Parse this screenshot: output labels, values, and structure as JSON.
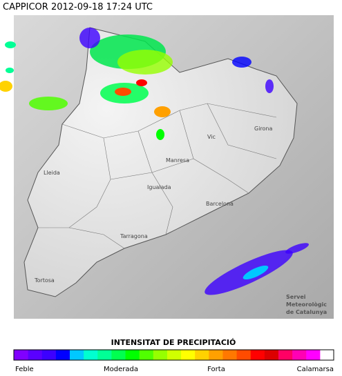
{
  "header": {
    "title": "CAPPICOR 2012-09-18 17:24 UTC"
  },
  "map": {
    "cities": [
      "Lleida",
      "Manresa",
      "Vic",
      "Girona",
      "Igualada",
      "Barcelona",
      "Tarragona",
      "Tortosa"
    ],
    "credit": [
      "Servei",
      "Meteorològic",
      "de Catalunya"
    ]
  },
  "legend": {
    "title": "INTENSITAT DE PRECIPITACIÓ",
    "colors": [
      "#8000ff",
      "#5a00ff",
      "#3c00ff",
      "#0000ff",
      "#00c8ff",
      "#00ffd0",
      "#00ff96",
      "#00ff50",
      "#00ff00",
      "#50ff00",
      "#96ff00",
      "#d0ff00",
      "#ffff00",
      "#ffd200",
      "#ffa000",
      "#ff7800",
      "#ff4b00",
      "#ff0000",
      "#dc0000",
      "#ff0064",
      "#ff00b4",
      "#ff00ff",
      "#ffffff"
    ],
    "labels": [
      "Feble",
      "Moderada",
      "Forta",
      "Calamarsa"
    ]
  }
}
